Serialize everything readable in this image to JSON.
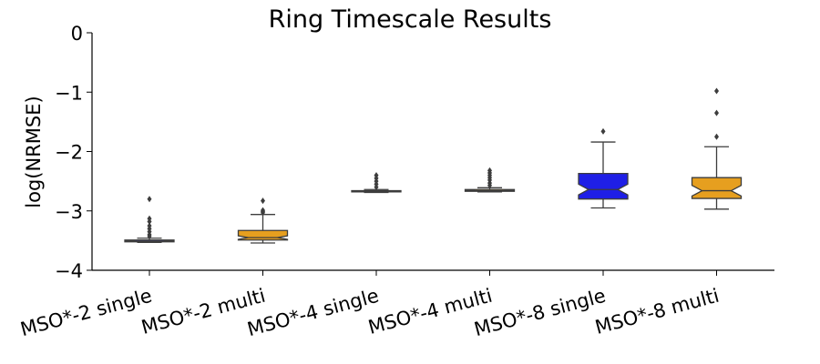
{
  "chart_data": {
    "type": "box",
    "title": "Ring Timescale Results",
    "xlabel": "",
    "ylabel": "log(NRMSE)",
    "ylim": [
      -4,
      0
    ],
    "yticks": [
      0,
      -1,
      -2,
      -3,
      -4
    ],
    "ytick_labels": [
      "0",
      "−1",
      "−2",
      "−3",
      "−4"
    ],
    "notched": true,
    "grid": false,
    "categories": [
      "MSO*-2 single",
      "MSO*-2 multi",
      "MSO*-4 single",
      "MSO*-4 multi",
      "MSO*-8 single",
      "MSO*-8 multi"
    ],
    "boxes": [
      {
        "category": "MSO*-2 single",
        "color": "#1f1fe6",
        "whisker_low": -3.53,
        "q1": -3.52,
        "median": -3.51,
        "q3": -3.49,
        "whisker_high": -3.46,
        "notch_low": -3.515,
        "notch_high": -3.505,
        "fliers": [
          -2.8,
          -3.13,
          -3.18,
          -3.25,
          -3.3,
          -3.35,
          -3.4,
          -3.43
        ]
      },
      {
        "category": "MSO*-2 multi",
        "color": "#e69f1f",
        "whisker_low": -3.54,
        "q1": -3.49,
        "median": -3.45,
        "q3": -3.33,
        "whisker_high": -3.06,
        "notch_low": -3.48,
        "notch_high": -3.42,
        "fliers": [
          -2.83,
          -2.99,
          -3.01,
          -3.03
        ]
      },
      {
        "category": "MSO*-4 single",
        "color": "#1f1fe6",
        "whisker_low": -2.69,
        "q1": -2.68,
        "median": -2.67,
        "q3": -2.66,
        "whisker_high": -2.64,
        "notch_low": -2.675,
        "notch_high": -2.665,
        "fliers": [
          -2.4,
          -2.45,
          -2.5,
          -2.55,
          -2.6
        ]
      },
      {
        "category": "MSO*-4 multi",
        "color": "#e69f1f",
        "whisker_low": -2.68,
        "q1": -2.67,
        "median": -2.66,
        "q3": -2.64,
        "whisker_high": -2.61,
        "notch_low": -2.665,
        "notch_high": -2.655,
        "fliers": [
          -2.32,
          -2.36,
          -2.4,
          -2.44,
          -2.48,
          -2.53,
          -2.57
        ]
      },
      {
        "category": "MSO*-8 single",
        "color": "#1f1fe6",
        "whisker_low": -2.95,
        "q1": -2.8,
        "median": -2.64,
        "q3": -2.37,
        "whisker_high": -1.84,
        "notch_low": -2.73,
        "notch_high": -2.55,
        "fliers": [
          -1.66
        ]
      },
      {
        "category": "MSO*-8 multi",
        "color": "#e69f1f",
        "whisker_low": -2.97,
        "q1": -2.79,
        "median": -2.66,
        "q3": -2.44,
        "whisker_high": -1.92,
        "notch_low": -2.75,
        "notch_high": -2.57,
        "fliers": [
          -0.98,
          -1.35,
          -1.75
        ]
      }
    ]
  }
}
